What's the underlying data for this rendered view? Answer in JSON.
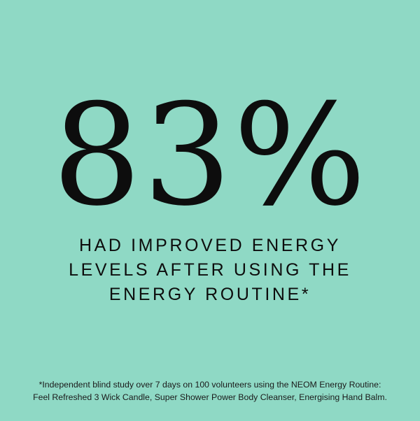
{
  "background_color": "#8fd9c5",
  "stat": "83%",
  "headline": [
    "HAD IMPROVED ENERGY",
    "LEVELS AFTER USING THE",
    "ENERGY ROUTINE*"
  ],
  "footnote": [
    "*Independent blind study over 7 days on 100 volunteers using the NEOM Energy Routine:",
    "Feel Refreshed 3 Wick Candle, Super Shower Power Body Cleanser, Energising Hand Balm."
  ]
}
